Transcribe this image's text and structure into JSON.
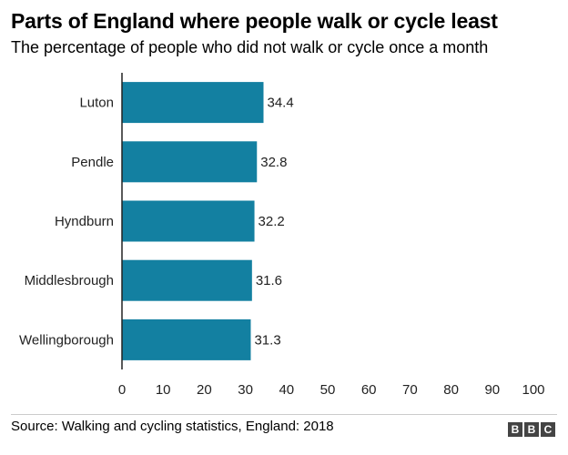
{
  "header": {
    "title": "Parts of England where people walk or cycle least",
    "subtitle": "The percentage of people who did not walk or cycle once a month"
  },
  "chart_data": {
    "type": "bar",
    "orientation": "horizontal",
    "categories": [
      "Luton",
      "Pendle",
      "Hyndburn",
      "Middlesbrough",
      "Wellingborough"
    ],
    "values": [
      34.4,
      32.8,
      32.2,
      31.6,
      31.3
    ],
    "data_labels": [
      "34.4",
      "32.8",
      "32.2",
      "31.6",
      "31.3"
    ],
    "xlim": [
      0,
      100
    ],
    "xticks": [
      0,
      10,
      20,
      30,
      40,
      50,
      60,
      70,
      80,
      90,
      100
    ],
    "grid": false,
    "bar_color": "#1380a1"
  },
  "footer": {
    "source": "Source: Walking and cycling statistics, England: 2018",
    "logo_letters": [
      "B",
      "B",
      "C"
    ]
  }
}
